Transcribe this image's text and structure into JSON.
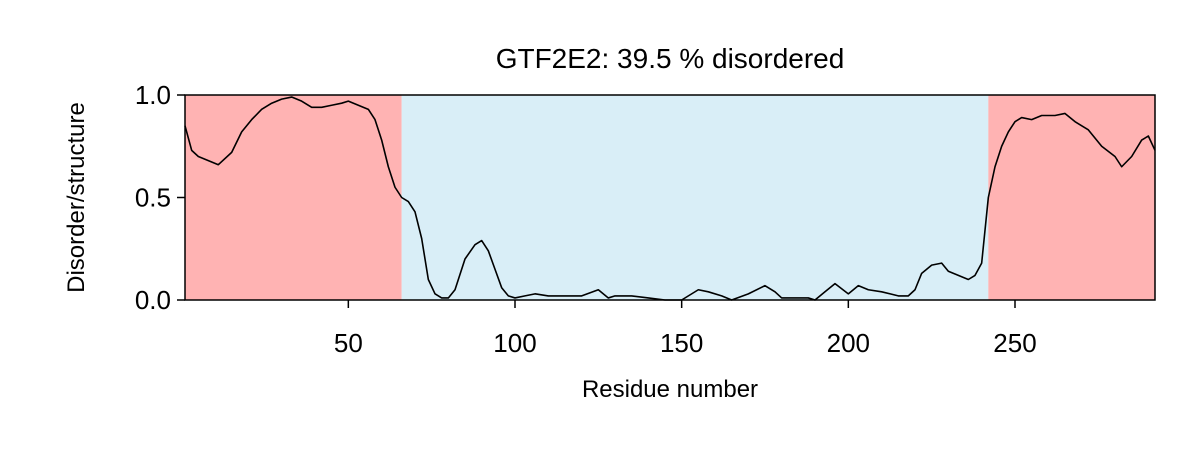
{
  "chart_data": {
    "type": "line",
    "title": "GTF2E2: 39.5 % disordered",
    "xlabel": "Residue number",
    "ylabel": "Disorder/structure",
    "xlim": [
      1,
      292
    ],
    "ylim": [
      0.0,
      1.0
    ],
    "x_ticks": [
      50,
      100,
      150,
      200,
      250
    ],
    "x_tick_labels": [
      "50",
      "100",
      "150",
      "200",
      "250"
    ],
    "y_ticks": [
      0.0,
      0.5,
      1.0
    ],
    "y_tick_labels": [
      "0.0",
      "0.5",
      "1.0"
    ],
    "grid": false,
    "colors": {
      "disordered_region": "#ffb3b3",
      "ordered_region": "#d9eef7",
      "line": "#000000"
    },
    "regions": [
      {
        "label": "disordered",
        "start": 1,
        "end": 66
      },
      {
        "label": "ordered",
        "start": 66,
        "end": 242
      },
      {
        "label": "disordered",
        "start": 242,
        "end": 292
      }
    ],
    "series": [
      {
        "x": [
          1,
          3,
          5,
          8,
          11,
          15,
          18,
          21,
          24,
          27,
          30,
          33,
          36,
          39,
          42,
          45,
          48,
          50,
          53,
          56,
          58,
          60,
          62,
          64,
          66,
          68,
          70,
          72,
          74,
          76,
          78,
          80,
          82,
          85,
          88,
          90,
          92,
          94,
          96,
          98,
          100,
          103,
          106,
          110,
          115,
          120,
          125,
          128,
          130,
          135,
          140,
          145,
          150,
          155,
          158,
          162,
          165,
          170,
          175,
          178,
          180,
          185,
          188,
          190,
          193,
          196,
          200,
          203,
          206,
          210,
          215,
          218,
          220,
          222,
          225,
          228,
          230,
          233,
          236,
          238,
          240,
          242,
          244,
          246,
          248,
          250,
          252,
          255,
          258,
          262,
          265,
          268,
          272,
          276,
          280,
          282,
          285,
          288,
          290,
          292
        ],
        "y": [
          0.85,
          0.73,
          0.7,
          0.68,
          0.66,
          0.72,
          0.82,
          0.88,
          0.93,
          0.96,
          0.98,
          0.99,
          0.97,
          0.94,
          0.94,
          0.95,
          0.96,
          0.97,
          0.95,
          0.93,
          0.88,
          0.78,
          0.65,
          0.55,
          0.5,
          0.48,
          0.43,
          0.3,
          0.1,
          0.03,
          0.01,
          0.01,
          0.05,
          0.2,
          0.27,
          0.29,
          0.24,
          0.15,
          0.06,
          0.02,
          0.01,
          0.02,
          0.03,
          0.02,
          0.02,
          0.02,
          0.05,
          0.01,
          0.02,
          0.02,
          0.01,
          0.0,
          0.0,
          0.05,
          0.04,
          0.02,
          0.0,
          0.03,
          0.07,
          0.04,
          0.01,
          0.01,
          0.01,
          0.0,
          0.04,
          0.08,
          0.03,
          0.07,
          0.05,
          0.04,
          0.02,
          0.02,
          0.05,
          0.13,
          0.17,
          0.18,
          0.14,
          0.12,
          0.1,
          0.12,
          0.18,
          0.5,
          0.65,
          0.75,
          0.82,
          0.87,
          0.89,
          0.88,
          0.9,
          0.9,
          0.91,
          0.87,
          0.83,
          0.75,
          0.7,
          0.65,
          0.7,
          0.78,
          0.8,
          0.73
        ]
      }
    ]
  }
}
